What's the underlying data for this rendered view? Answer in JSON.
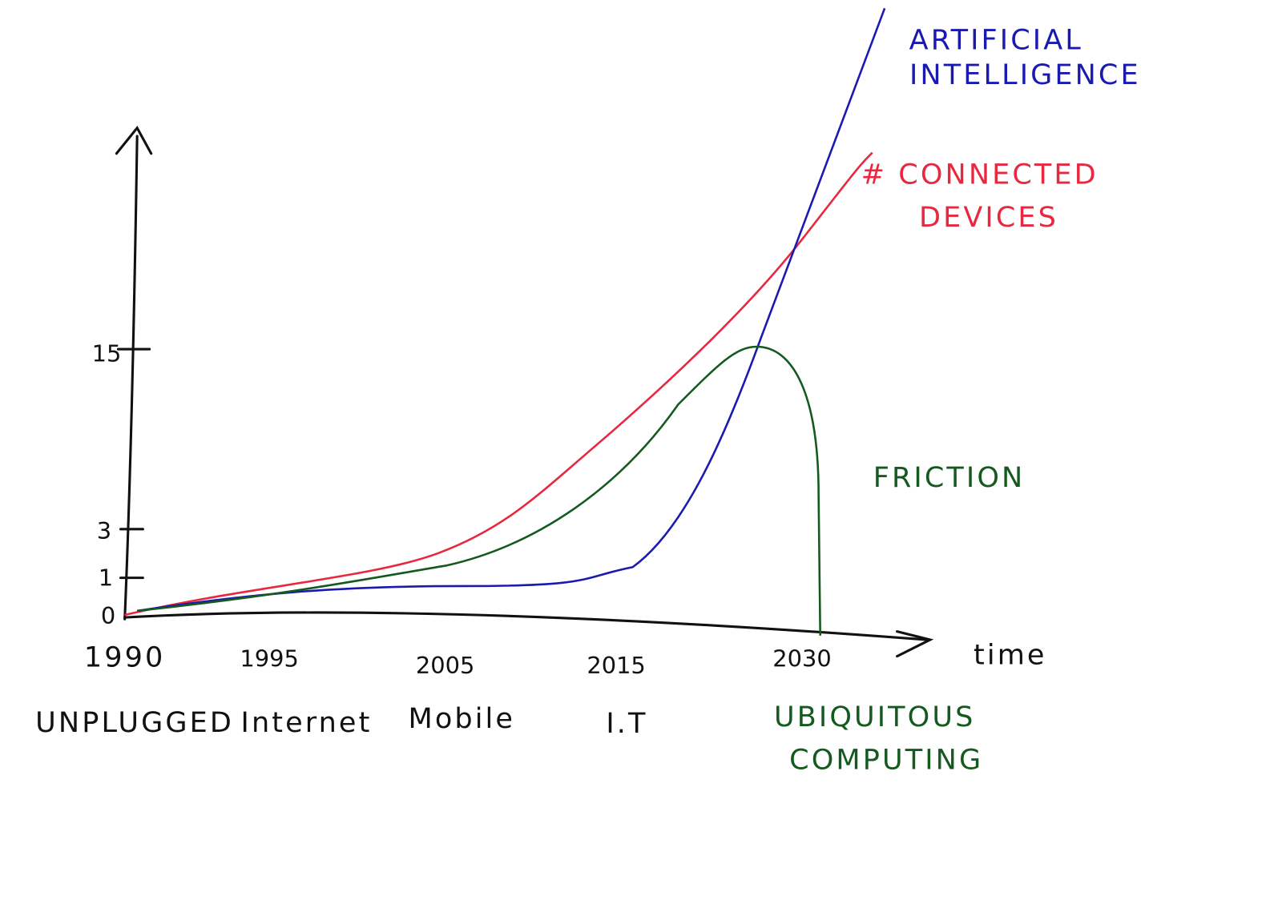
{
  "axes": {
    "y_ticks": [
      "15",
      "3",
      "1",
      "0"
    ],
    "x_ticks": [
      "1990",
      "1995",
      "2005",
      "2015",
      "2030"
    ],
    "x_label": "time"
  },
  "eras": [
    "UNPLUGGED",
    "Internet",
    "Mobile",
    "I.T",
    "UBIQUITOUS",
    "COMPUTING"
  ],
  "curves": {
    "ai": [
      "ARTIFICIAL",
      "INTELLIGENCE"
    ],
    "devices": [
      "# CONNECTED",
      "DEVICES"
    ],
    "friction": "FRICTION"
  }
}
